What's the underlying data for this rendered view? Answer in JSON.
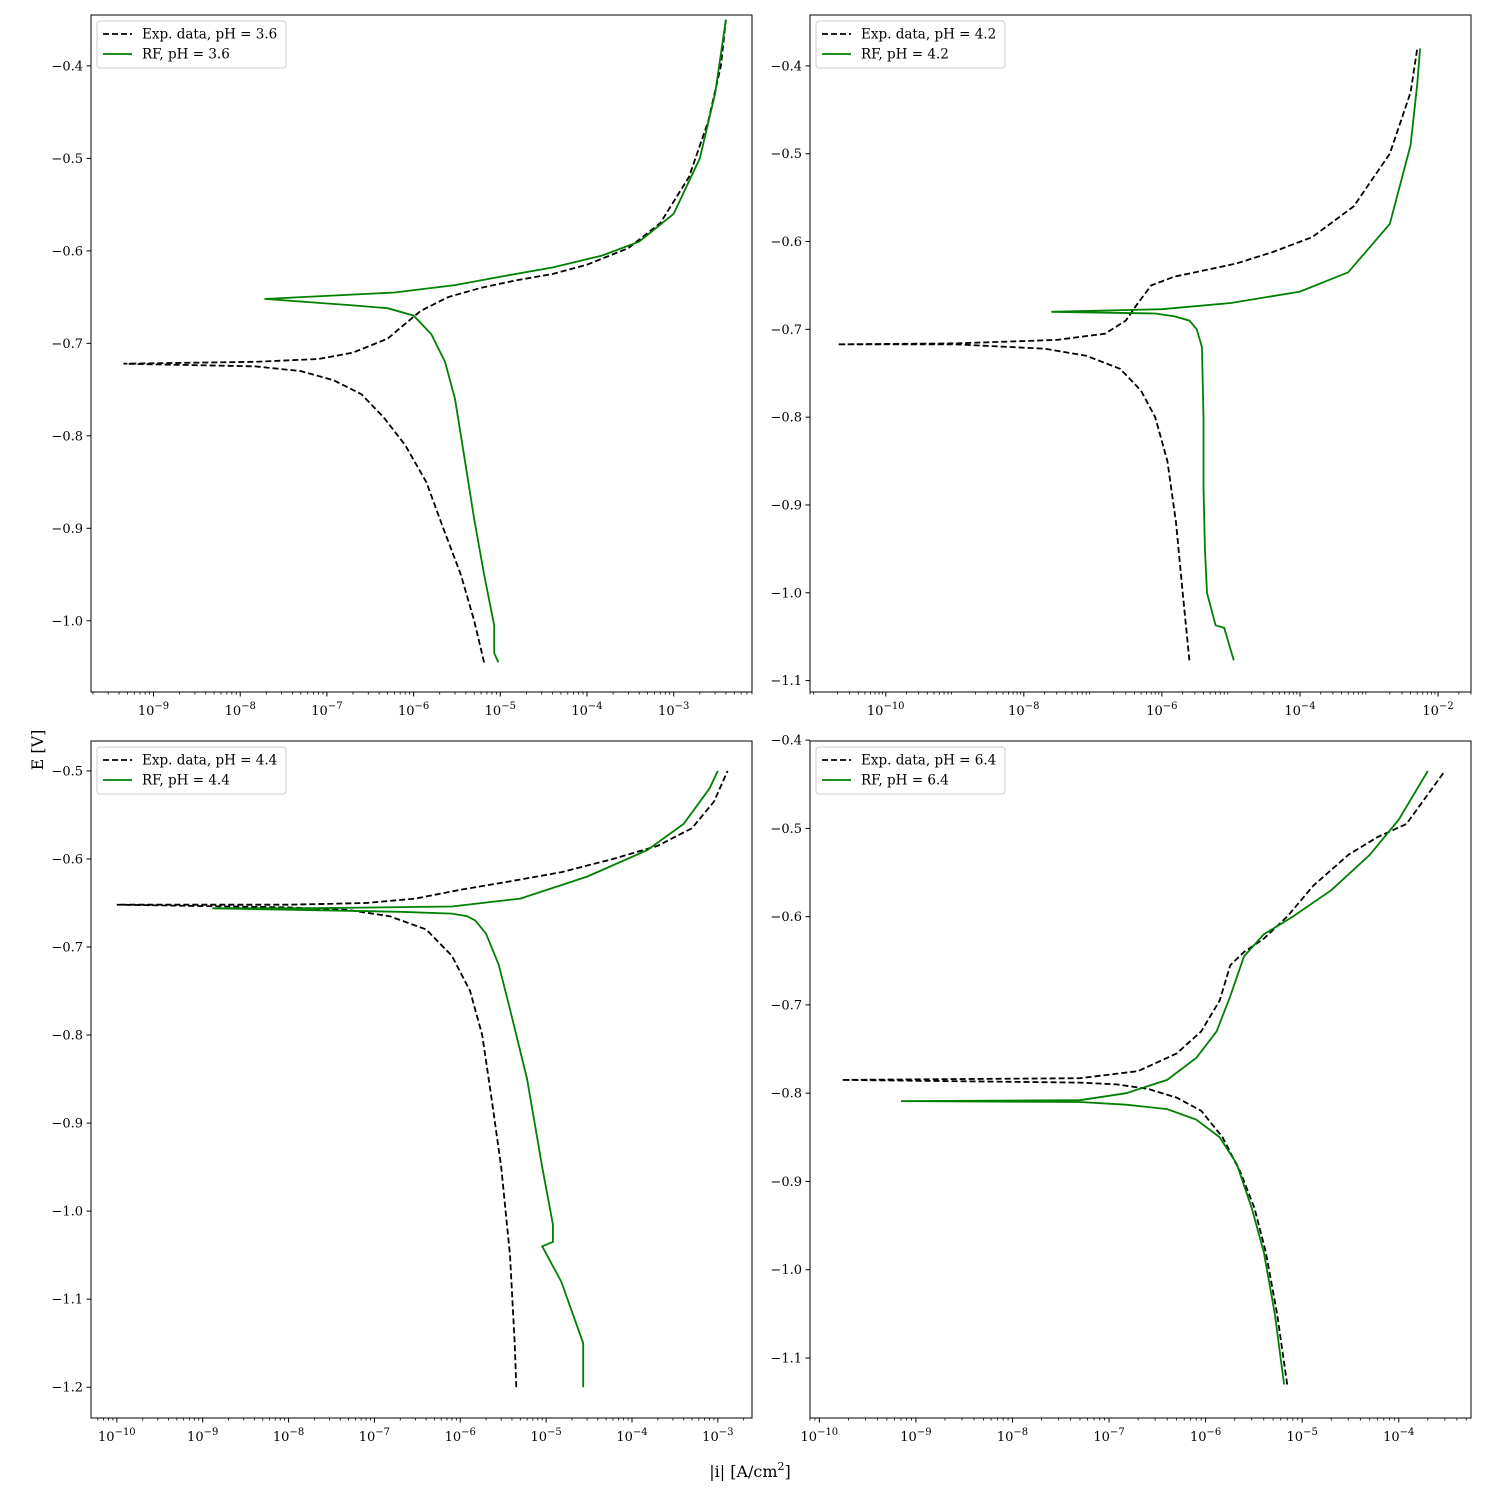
{
  "figure": {
    "xlabel": "|i| [A/cm",
    "xlabel_sup": "2",
    "xlabel_tail": "]",
    "ylabel": "E [V]"
  },
  "colors": {
    "exp": "#000000",
    "rf": "#008000",
    "frame": "#000000",
    "legend_border": "#cccccc"
  },
  "chart_data": [
    {
      "type": "line",
      "xscale": "log",
      "grid": false,
      "legend": "upper-left",
      "xlim": [
        1.9e-10,
        0.008
      ],
      "ylim": [
        -1.077,
        -0.345
      ],
      "xticks": [
        {
          "v": 1e-09,
          "base": "10",
          "exp": "−9"
        },
        {
          "v": 1e-08,
          "base": "10",
          "exp": "−8"
        },
        {
          "v": 1e-07,
          "base": "10",
          "exp": "−7"
        },
        {
          "v": 1e-06,
          "base": "10",
          "exp": "−6"
        },
        {
          "v": 1e-05,
          "base": "10",
          "exp": "−5"
        },
        {
          "v": 0.0001,
          "base": "10",
          "exp": "−4"
        },
        {
          "v": 0.001,
          "base": "10",
          "exp": "−3"
        }
      ],
      "yticks": [
        {
          "v": -1.0,
          "label": "−1.0"
        },
        {
          "v": -0.9,
          "label": "−0.9"
        },
        {
          "v": -0.8,
          "label": "−0.8"
        },
        {
          "v": -0.7,
          "label": "−0.7"
        },
        {
          "v": -0.6,
          "label": "−0.6"
        },
        {
          "v": -0.5,
          "label": "−0.5"
        },
        {
          "v": -0.4,
          "label": "−0.4"
        }
      ],
      "series": [
        {
          "name": "Exp. data, pH = 3.6",
          "style": "dashed",
          "color": "#000000",
          "x": [
            6.5e-06,
            5e-06,
            3.5e-06,
            2.2e-06,
            1.4e-06,
            8e-07,
            4.5e-07,
            2.5e-07,
            1.2e-07,
            5e-08,
            1.5e-08,
            4.5e-10,
            1.5e-08,
            8e-08,
            2e-07,
            5e-07,
            1.2e-06,
            2.5e-06,
            6e-06,
            1.5e-05,
            4e-05,
            0.0001,
            0.0003,
            0.0007,
            0.0015,
            0.0025,
            0.0035,
            0.004
          ],
          "y": [
            -1.045,
            -1.0,
            -0.95,
            -0.9,
            -0.85,
            -0.81,
            -0.78,
            -0.755,
            -0.74,
            -0.73,
            -0.725,
            -0.722,
            -0.72,
            -0.717,
            -0.71,
            -0.695,
            -0.665,
            -0.65,
            -0.64,
            -0.632,
            -0.625,
            -0.615,
            -0.597,
            -0.57,
            -0.52,
            -0.46,
            -0.4,
            -0.35
          ]
        },
        {
          "name": "RF, pH = 3.6",
          "style": "solid",
          "color": "#008000",
          "x": [
            9.5e-06,
            8.5e-06,
            8.5e-06,
            6.5e-06,
            5e-06,
            3.8e-06,
            3e-06,
            2.3e-06,
            1.6e-06,
            1e-06,
            5e-07,
            2e-07,
            1.9e-08,
            2e-08,
            6e-07,
            3e-06,
            1e-05,
            4e-05,
            0.00015,
            0.0004,
            0.001,
            0.002,
            0.003,
            0.004
          ],
          "y": [
            -1.045,
            -1.035,
            -1.005,
            -0.95,
            -0.89,
            -0.82,
            -0.76,
            -0.72,
            -0.69,
            -0.67,
            -0.662,
            -0.659,
            -0.652,
            -0.652,
            -0.645,
            -0.637,
            -0.628,
            -0.618,
            -0.605,
            -0.59,
            -0.56,
            -0.5,
            -0.43,
            -0.35
          ]
        }
      ]
    },
    {
      "type": "line",
      "xscale": "log",
      "grid": false,
      "legend": "upper-left",
      "xlim": [
        8e-12,
        0.03
      ],
      "ylim": [
        -1.113,
        -0.342
      ],
      "xticks": [
        {
          "v": 1e-10,
          "base": "10",
          "exp": "−10"
        },
        {
          "v": 1e-08,
          "base": "10",
          "exp": "−8"
        },
        {
          "v": 1e-06,
          "base": "10",
          "exp": "−6"
        },
        {
          "v": 0.0001,
          "base": "10",
          "exp": "−4"
        },
        {
          "v": 0.01,
          "base": "10",
          "exp": "−2"
        }
      ],
      "yticks": [
        {
          "v": -1.1,
          "label": "−1.1"
        },
        {
          "v": -1.0,
          "label": "−1.0"
        },
        {
          "v": -0.9,
          "label": "−0.9"
        },
        {
          "v": -0.8,
          "label": "−0.8"
        },
        {
          "v": -0.7,
          "label": "−0.7"
        },
        {
          "v": -0.6,
          "label": "−0.6"
        },
        {
          "v": -0.5,
          "label": "−0.5"
        },
        {
          "v": -0.4,
          "label": "−0.4"
        }
      ],
      "series": [
        {
          "name": "Exp. data, pH = 4.2",
          "style": "dashed",
          "color": "#000000",
          "x": [
            2.5e-06,
            2e-06,
            1.6e-06,
            1.2e-06,
            8e-07,
            5e-07,
            2.5e-07,
            8e-08,
            2e-08,
            1e-09,
            2e-11,
            1e-09,
            3e-08,
            1.5e-07,
            3e-07,
            4.5e-07,
            7e-07,
            1.5e-06,
            4e-06,
            1.2e-05,
            4e-05,
            0.00015,
            0.0006,
            0.002,
            0.004,
            0.005
          ],
          "y": [
            -1.077,
            -1.0,
            -0.92,
            -0.85,
            -0.8,
            -0.77,
            -0.745,
            -0.73,
            -0.722,
            -0.717,
            -0.717,
            -0.716,
            -0.712,
            -0.705,
            -0.69,
            -0.67,
            -0.65,
            -0.64,
            -0.633,
            -0.625,
            -0.612,
            -0.595,
            -0.56,
            -0.5,
            -0.43,
            -0.38
          ]
        },
        {
          "name": "RF, pH = 4.2",
          "style": "solid",
          "color": "#008000",
          "x": [
            1.1e-05,
            8e-06,
            6e-06,
            4.5e-06,
            4.2e-06,
            4e-06,
            4e-06,
            3.8e-06,
            3.2e-06,
            2.5e-06,
            1.5e-06,
            8e-07,
            2.5e-08,
            2.5e-08,
            1e-06,
            1e-05,
            0.0001,
            0.0005,
            0.002,
            0.004,
            0.005,
            0.0055
          ],
          "y": [
            -1.077,
            -1.04,
            -1.037,
            -1.0,
            -0.95,
            -0.88,
            -0.8,
            -0.72,
            -0.7,
            -0.69,
            -0.685,
            -0.682,
            -0.68,
            -0.68,
            -0.677,
            -0.67,
            -0.657,
            -0.635,
            -0.58,
            -0.49,
            -0.42,
            -0.38
          ]
        }
      ]
    },
    {
      "type": "line",
      "xscale": "log",
      "grid": false,
      "legend": "upper-left",
      "xlim": [
        5e-11,
        0.0025
      ],
      "ylim": [
        -1.235,
        -0.466
      ],
      "xticks": [
        {
          "v": 1e-10,
          "base": "10",
          "exp": "−10"
        },
        {
          "v": 1e-09,
          "base": "10",
          "exp": "−9"
        },
        {
          "v": 1e-08,
          "base": "10",
          "exp": "−8"
        },
        {
          "v": 1e-07,
          "base": "10",
          "exp": "−7"
        },
        {
          "v": 1e-06,
          "base": "10",
          "exp": "−6"
        },
        {
          "v": 1e-05,
          "base": "10",
          "exp": "−5"
        },
        {
          "v": 0.0001,
          "base": "10",
          "exp": "−4"
        },
        {
          "v": 0.001,
          "base": "10",
          "exp": "−3"
        }
      ],
      "yticks": [
        {
          "v": -1.2,
          "label": "−1.2"
        },
        {
          "v": -1.1,
          "label": "−1.1"
        },
        {
          "v": -1.0,
          "label": "−1.0"
        },
        {
          "v": -0.9,
          "label": "−0.9"
        },
        {
          "v": -0.8,
          "label": "−0.8"
        },
        {
          "v": -0.7,
          "label": "−0.7"
        },
        {
          "v": -0.6,
          "label": "−0.6"
        },
        {
          "v": -0.5,
          "label": "−0.5"
        }
      ],
      "series": [
        {
          "name": "Exp. data, pH = 4.4",
          "style": "dashed",
          "color": "#000000",
          "x": [
            4.5e-06,
            4.3e-06,
            3.8e-06,
            3e-06,
            2.3e-06,
            1.8e-06,
            1.3e-06,
            8e-07,
            4e-07,
            1.5e-07,
            5e-08,
            1e-08,
            1e-10,
            1e-08,
            8e-08,
            3e-07,
            1e-06,
            4e-06,
            1.5e-05,
            6e-05,
            0.0002,
            0.0005,
            0.0009,
            0.0013
          ],
          "y": [
            -1.2,
            -1.15,
            -1.05,
            -0.95,
            -0.87,
            -0.8,
            -0.75,
            -0.71,
            -0.68,
            -0.665,
            -0.658,
            -0.655,
            -0.652,
            -0.652,
            -0.65,
            -0.645,
            -0.635,
            -0.625,
            -0.615,
            -0.6,
            -0.585,
            -0.565,
            -0.535,
            -0.5
          ]
        },
        {
          "name": "RF, pH = 4.4",
          "style": "solid",
          "color": "#008000",
          "x": [
            2.7e-05,
            2.7e-05,
            1.5e-05,
            9e-06,
            1.2e-05,
            1.2e-05,
            9e-06,
            6e-06,
            4e-06,
            2.8e-06,
            2e-06,
            1.5e-06,
            1.2e-06,
            8e-07,
            2e-07,
            1.3e-09,
            1.5e-08,
            8e-07,
            5e-06,
            3e-05,
            0.00015,
            0.0004,
            0.0008,
            0.001
          ],
          "y": [
            -1.2,
            -1.15,
            -1.08,
            -1.04,
            -1.035,
            -1.015,
            -0.95,
            -0.85,
            -0.78,
            -0.72,
            -0.685,
            -0.67,
            -0.665,
            -0.662,
            -0.66,
            -0.656,
            -0.656,
            -0.654,
            -0.645,
            -0.62,
            -0.59,
            -0.56,
            -0.52,
            -0.5
          ]
        }
      ]
    },
    {
      "type": "line",
      "xscale": "log",
      "grid": false,
      "legend": "upper-left",
      "xlim": [
        8e-11,
        0.00056
      ],
      "ylim": [
        -1.168,
        -0.401
      ],
      "xticks": [
        {
          "v": 1e-10,
          "base": "10",
          "exp": "−10"
        },
        {
          "v": 1e-09,
          "base": "10",
          "exp": "−9"
        },
        {
          "v": 1e-08,
          "base": "10",
          "exp": "−8"
        },
        {
          "v": 1e-07,
          "base": "10",
          "exp": "−7"
        },
        {
          "v": 1e-06,
          "base": "10",
          "exp": "−6"
        },
        {
          "v": 1e-05,
          "base": "10",
          "exp": "−5"
        },
        {
          "v": 0.0001,
          "base": "10",
          "exp": "−4"
        }
      ],
      "yticks": [
        {
          "v": -1.1,
          "label": "−1.1"
        },
        {
          "v": -1.0,
          "label": "−1.0"
        },
        {
          "v": -0.9,
          "label": "−0.9"
        },
        {
          "v": -0.8,
          "label": "−0.8"
        },
        {
          "v": -0.7,
          "label": "−0.7"
        },
        {
          "v": -0.6,
          "label": "−0.6"
        },
        {
          "v": -0.5,
          "label": "−0.5"
        },
        {
          "v": -0.4,
          "label": "−0.4"
        }
      ],
      "series": [
        {
          "name": "Exp. data, pH = 6.4",
          "style": "dashed",
          "color": "#000000",
          "x": [
            7e-06,
            5.5e-06,
            4.2e-06,
            3.2e-06,
            2.3e-06,
            1.5e-06,
            9e-07,
            5e-07,
            2.5e-07,
            1.2e-07,
            5e-08,
            1.7e-10,
            5e-08,
            2e-07,
            5e-07,
            9e-07,
            1.4e-06,
            1.8e-06,
            2.5e-06,
            4e-06,
            7e-06,
            1.3e-05,
            3e-05,
            6e-05,
            0.00012,
            0.0003
          ],
          "y": [
            -1.13,
            -1.05,
            -0.98,
            -0.93,
            -0.89,
            -0.85,
            -0.82,
            -0.805,
            -0.795,
            -0.79,
            -0.788,
            -0.785,
            -0.783,
            -0.775,
            -0.755,
            -0.73,
            -0.695,
            -0.655,
            -0.64,
            -0.625,
            -0.6,
            -0.565,
            -0.53,
            -0.51,
            -0.495,
            -0.435
          ]
        },
        {
          "name": "RF, pH = 6.4",
          "style": "solid",
          "color": "#008000",
          "x": [
            6.5e-06,
            5.2e-06,
            4e-06,
            3e-06,
            2.1e-06,
            1.4e-06,
            8e-07,
            4e-07,
            1.5e-07,
            5e-08,
            7e-10,
            5e-08,
            1.5e-07,
            4e-07,
            8e-07,
            1.3e-06,
            1.8e-06,
            2.5e-06,
            4e-06,
            8e-06,
            2e-05,
            5e-05,
            0.0001,
            0.0002
          ],
          "y": [
            -1.13,
            -1.05,
            -0.98,
            -0.93,
            -0.88,
            -0.85,
            -0.83,
            -0.818,
            -0.813,
            -0.81,
            -0.809,
            -0.808,
            -0.8,
            -0.785,
            -0.76,
            -0.73,
            -0.69,
            -0.645,
            -0.62,
            -0.6,
            -0.57,
            -0.53,
            -0.49,
            -0.435
          ]
        }
      ]
    }
  ]
}
